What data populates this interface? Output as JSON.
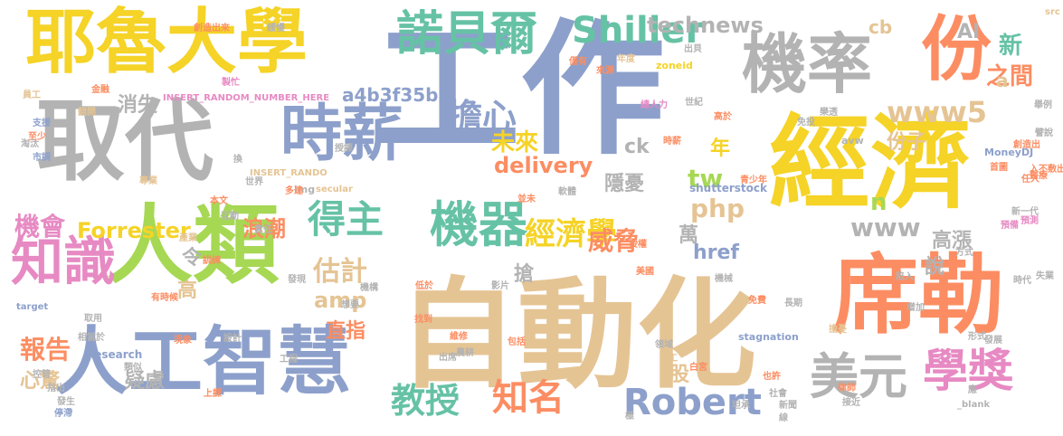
{
  "palette": {
    "yellow": "#f5d327",
    "gray": "#b3b3b3",
    "blue": "#8da0cb",
    "orange": "#fc8d62",
    "green": "#66c2a5",
    "lime": "#a6d854",
    "tan": "#e5c494",
    "pink": "#e78ac3"
  },
  "words": [
    {
      "text": "工作",
      "color": "blue"
    },
    {
      "text": "自動化",
      "color": "tan"
    },
    {
      "text": "經濟",
      "color": "yellow"
    },
    {
      "text": "耶魯大學",
      "color": "yellow"
    },
    {
      "text": "取代",
      "color": "gray"
    },
    {
      "text": "人類",
      "color": "lime"
    },
    {
      "text": "席勒",
      "color": "orange"
    },
    {
      "text": "人工智慧",
      "color": "blue"
    },
    {
      "text": "機率",
      "color": "gray"
    },
    {
      "text": "時薪",
      "color": "blue"
    },
    {
      "text": "份",
      "color": "orange"
    },
    {
      "text": "諾貝爾",
      "color": "green"
    },
    {
      "text": "美元",
      "color": "gray"
    },
    {
      "text": "知識",
      "color": "pink"
    },
    {
      "text": "機器",
      "color": "green"
    },
    {
      "text": "得主",
      "color": "green"
    },
    {
      "text": "擔心",
      "color": "blue"
    },
    {
      "text": "Shiller",
      "color": "green"
    },
    {
      "text": "technews",
      "color": "gray"
    },
    {
      "text": "Robert",
      "color": "blue"
    },
    {
      "text": "教授",
      "color": "green"
    },
    {
      "text": "知名",
      "color": "orange"
    },
    {
      "text": "學獎",
      "color": "pink"
    },
    {
      "text": "經濟學",
      "color": "yellow"
    },
    {
      "text": "www5",
      "color": "tan"
    },
    {
      "text": "delivery",
      "color": "orange"
    },
    {
      "text": "a4b3f35b",
      "color": "blue"
    },
    {
      "text": "Forrester",
      "color": "yellow"
    },
    {
      "text": "未來",
      "color": "yellow"
    },
    {
      "text": "消失",
      "color": "gray"
    },
    {
      "text": "估計",
      "color": "tan"
    },
    {
      "text": "amp",
      "color": "tan"
    },
    {
      "text": "報告",
      "color": "orange"
    },
    {
      "text": "機會",
      "color": "pink"
    },
    {
      "text": "浪潮",
      "color": "orange"
    },
    {
      "text": "www",
      "color": "gray"
    },
    {
      "text": "威脅",
      "color": "orange"
    },
    {
      "text": "php",
      "color": "tan"
    },
    {
      "text": "tw",
      "color": "lime"
    },
    {
      "text": "cb",
      "color": "tan"
    },
    {
      "text": "之間",
      "color": "orange"
    },
    {
      "text": "份子",
      "color": "tan"
    },
    {
      "text": "AI",
      "color": "gray"
    },
    {
      "text": "新",
      "color": "green"
    },
    {
      "text": "a",
      "color": "tan"
    },
    {
      "text": "年",
      "color": "yellow"
    },
    {
      "text": "ck",
      "color": "gray"
    },
    {
      "text": "隱憂",
      "color": "gray"
    },
    {
      "text": "n",
      "color": "lime"
    },
    {
      "text": "href",
      "color": "blue"
    },
    {
      "text": "高漲",
      "color": "gray"
    },
    {
      "text": "說",
      "color": "gray"
    },
    {
      "text": "萬",
      "color": "gray"
    },
    {
      "text": "搶",
      "color": "gray"
    },
    {
      "text": "令",
      "color": "gray"
    },
    {
      "text": "高",
      "color": "tan"
    },
    {
      "text": "直指",
      "color": "orange"
    },
    {
      "text": "心驚",
      "color": "tan"
    },
    {
      "text": "疑慮",
      "color": "gray"
    },
    {
      "text": "股",
      "color": "tan"
    },
    {
      "text": "shutterstock",
      "color": "blue"
    },
    {
      "text": "INSERT_RANDOM_NUMBER_HERE",
      "color": "pink"
    },
    {
      "text": "INSERT_RANDO",
      "color": "tan"
    },
    {
      "text": "Research",
      "color": "blue"
    },
    {
      "text": "stagnation",
      "color": "blue"
    },
    {
      "text": "_blank",
      "color": "gray"
    },
    {
      "text": "MoneyDJ",
      "color": "blue"
    },
    {
      "text": "zoneid",
      "color": "yellow"
    },
    {
      "text": "secular",
      "color": "tan"
    },
    {
      "text": "target",
      "color": "blue"
    },
    {
      "text": "img",
      "color": "gray"
    },
    {
      "text": "src",
      "color": "tan"
    },
    {
      "text": "avw",
      "color": "gray"
    },
    {
      "text": "創造出來",
      "color": "orange"
    },
    {
      "text": "緩慢",
      "color": "gray"
    },
    {
      "text": "員工",
      "color": "tan"
    },
    {
      "text": "金融",
      "color": "orange"
    },
    {
      "text": "製忙",
      "color": "pink"
    },
    {
      "text": "翻開",
      "color": "tan"
    },
    {
      "text": "支援",
      "color": "blue"
    },
    {
      "text": "至少",
      "color": "orange"
    },
    {
      "text": "淘汰",
      "color": "gray"
    },
    {
      "text": "市調",
      "color": "blue"
    },
    {
      "text": "專業",
      "color": "tan"
    },
    {
      "text": "多達",
      "color": "orange"
    },
    {
      "text": "授課",
      "color": "gray"
    },
    {
      "text": "總人力",
      "color": "pink"
    },
    {
      "text": "高於",
      "color": "orange"
    },
    {
      "text": "時薪",
      "color": "orange"
    },
    {
      "text": "世紀",
      "color": "gray"
    },
    {
      "text": "出貝",
      "color": "gray"
    },
    {
      "text": "年度",
      "color": "tan"
    },
    {
      "text": "僅有",
      "color": "orange"
    },
    {
      "text": "來源",
      "color": "orange"
    },
    {
      "text": "免投",
      "color": "gray"
    },
    {
      "text": "樂透",
      "color": "gray"
    },
    {
      "text": "舉例",
      "color": "gray"
    },
    {
      "text": "譬說",
      "color": "gray"
    },
    {
      "text": "創造出",
      "color": "orange"
    },
    {
      "text": "首圖",
      "color": "orange"
    },
    {
      "text": "任人",
      "color": "orange"
    },
    {
      "text": "青少年",
      "color": "orange"
    },
    {
      "text": "軟體",
      "color": "gray"
    },
    {
      "text": "並未",
      "color": "orange"
    },
    {
      "text": "世界",
      "color": "gray"
    },
    {
      "text": "本文",
      "color": "orange"
    },
    {
      "text": "互動",
      "color": "gray"
    },
    {
      "text": "產業",
      "color": "tan"
    },
    {
      "text": "訓練",
      "color": "orange"
    },
    {
      "text": "發現",
      "color": "gray"
    },
    {
      "text": "機構",
      "color": "gray"
    },
    {
      "text": "低於",
      "color": "orange"
    },
    {
      "text": "影片",
      "color": "gray"
    },
    {
      "text": "想要",
      "color": "gray"
    },
    {
      "text": "美國",
      "color": "orange"
    },
    {
      "text": "授權",
      "color": "orange"
    },
    {
      "text": "機械",
      "color": "gray"
    },
    {
      "text": "方式",
      "color": "gray"
    },
    {
      "text": "新一代",
      "color": "gray"
    },
    {
      "text": "預備",
      "color": "pink"
    },
    {
      "text": "預測",
      "color": "pink"
    },
    {
      "text": "入不敷出",
      "color": "orange"
    },
    {
      "text": "醫療",
      "color": "orange"
    },
    {
      "text": "陷入",
      "color": "gray"
    },
    {
      "text": "時代",
      "color": "gray"
    },
    {
      "text": "失業",
      "color": "gray"
    },
    {
      "text": "長期",
      "color": "gray"
    },
    {
      "text": "免費",
      "color": "orange"
    },
    {
      "text": "增加",
      "color": "gray"
    },
    {
      "text": "擔憂",
      "color": "tan"
    },
    {
      "text": "維修",
      "color": "orange"
    },
    {
      "text": "找到",
      "color": "orange"
    },
    {
      "text": "工程",
      "color": "gray"
    },
    {
      "text": "設計",
      "color": "gray"
    },
    {
      "text": "現象",
      "color": "orange"
    },
    {
      "text": "有時候",
      "color": "orange"
    },
    {
      "text": "取用",
      "color": "gray"
    },
    {
      "text": "相當於",
      "color": "gray"
    },
    {
      "text": "類似",
      "color": "gray"
    },
    {
      "text": "控管",
      "color": "gray"
    },
    {
      "text": "指出",
      "color": "gray"
    },
    {
      "text": "發生",
      "color": "gray"
    },
    {
      "text": "停滯",
      "color": "blue"
    },
    {
      "text": "上課",
      "color": "orange"
    },
    {
      "text": "出席",
      "color": "gray"
    },
    {
      "text": "農耕",
      "color": "gray"
    },
    {
      "text": "包括",
      "color": "orange"
    },
    {
      "text": "領域",
      "color": "gray"
    },
    {
      "text": "手工",
      "color": "tan"
    },
    {
      "text": "白宮",
      "color": "orange"
    },
    {
      "text": "也許",
      "color": "orange"
    },
    {
      "text": "律師",
      "color": "orange"
    },
    {
      "text": "社會",
      "color": "gray"
    },
    {
      "text": "接近",
      "color": "gray"
    },
    {
      "text": "形式",
      "color": "gray"
    },
    {
      "text": "發展",
      "color": "gray"
    },
    {
      "text": "坦承",
      "color": "gray"
    },
    {
      "text": "新聞",
      "color": "gray"
    },
    {
      "text": "線",
      "color": "gray"
    },
    {
      "text": "極",
      "color": "gray"
    },
    {
      "text": "應",
      "color": "gray"
    },
    {
      "text": "換",
      "color": "gray"
    },
    {
      "text": "責任",
      "color": "gray"
    }
  ]
}
